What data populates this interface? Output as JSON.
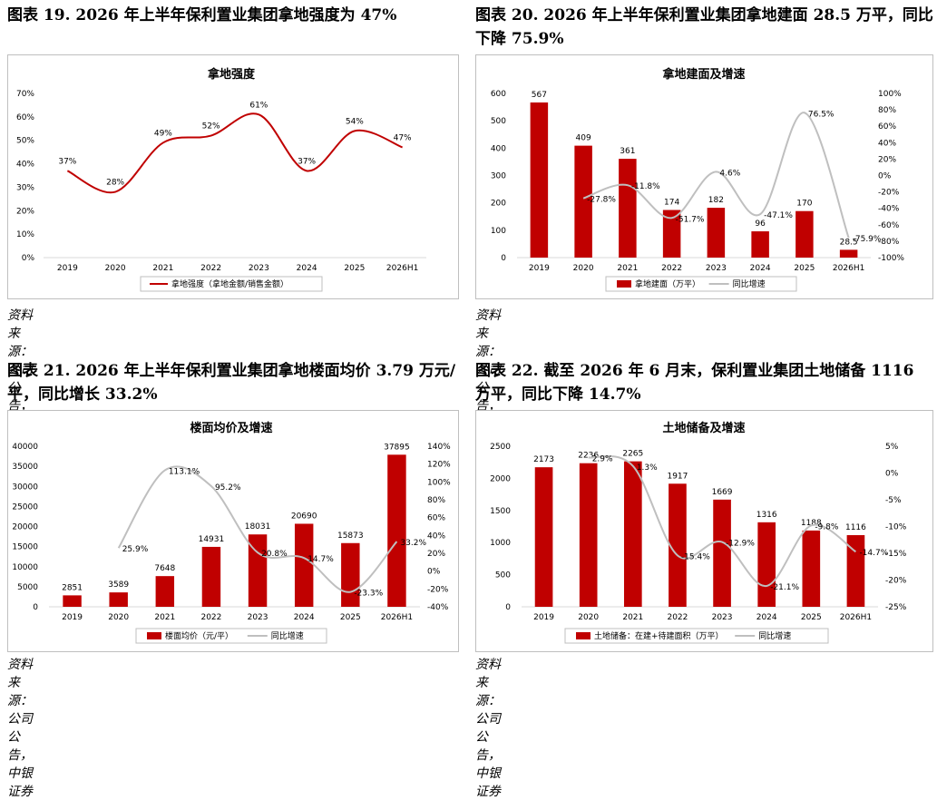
{
  "source_text": "资料来源：公司公告，中银证券",
  "chart_data": [
    {
      "id": "fig19",
      "heading": "图表 19. 2026 年上半年保利置业集团拿地强度为 47%",
      "type": "line",
      "title": "拿地强度",
      "categories": [
        "2019",
        "2020",
        "2021",
        "2022",
        "2023",
        "2024",
        "2025",
        "2026H1"
      ],
      "yticks": [
        "0%",
        "10%",
        "20%",
        "30%",
        "40%",
        "50%",
        "60%",
        "70%"
      ],
      "ylim": [
        0,
        70
      ],
      "series": [
        {
          "name": "拿地强度（拿地金额/销售金额）",
          "values": [
            37,
            28,
            49,
            52,
            61,
            37,
            54,
            47
          ],
          "labels": [
            "37%",
            "28%",
            "49%",
            "52%",
            "61%",
            "37%",
            "54%",
            "47%"
          ],
          "color": "#c00000"
        }
      ],
      "legend": "bottom"
    },
    {
      "id": "fig20",
      "heading": "图表 20. 2026 年上半年保利置业集团拿地建面 28.5 万平，同比下降 75.9%",
      "type": "bar+line",
      "title": "拿地建面及增速",
      "categories": [
        "2019",
        "2020",
        "2021",
        "2022",
        "2023",
        "2024",
        "2025",
        "2026H1"
      ],
      "yticks_left": [
        "0",
        "100",
        "200",
        "300",
        "400",
        "500",
        "600"
      ],
      "ylim_left": [
        0,
        600
      ],
      "yticks_right": [
        "-100%",
        "-80%",
        "-60%",
        "-40%",
        "-20%",
        "0%",
        "20%",
        "40%",
        "60%",
        "80%",
        "100%"
      ],
      "ylim_right": [
        -100,
        100
      ],
      "bars": {
        "name": "拿地建面（万平）",
        "values": [
          567,
          409,
          361,
          174,
          182,
          96,
          170,
          28.5
        ],
        "labels": [
          "567",
          "409",
          "361",
          "174",
          "182",
          "96",
          "170",
          "28.5"
        ],
        "color": "#c00000"
      },
      "line": {
        "name": "同比增速",
        "values": [
          null,
          -27.8,
          -11.8,
          -51.7,
          4.6,
          -47.1,
          76.5,
          -75.9
        ],
        "labels": [
          "",
          "-27.8%",
          "-11.8%",
          "-51.7%",
          "4.6%",
          "-47.1%",
          "76.5%",
          "-75.9%"
        ],
        "color": "#bfbfbf"
      },
      "legend": "bottom"
    },
    {
      "id": "fig21",
      "heading": "图表 21. 2026 年上半年保利置业集团拿地楼面均价 3.79 万元/平，同比增长 33.2%",
      "type": "bar+line",
      "title": "楼面均价及增速",
      "categories": [
        "2019",
        "2020",
        "2021",
        "2022",
        "2023",
        "2024",
        "2025",
        "2026H1"
      ],
      "yticks_left": [
        "0",
        "5000",
        "10000",
        "15000",
        "20000",
        "25000",
        "30000",
        "35000",
        "40000"
      ],
      "ylim_left": [
        0,
        40000
      ],
      "yticks_right": [
        "-40%",
        "-20%",
        "0%",
        "20%",
        "40%",
        "60%",
        "80%",
        "100%",
        "120%",
        "140%"
      ],
      "ylim_right": [
        -40,
        140
      ],
      "bars": {
        "name": "楼面均价（元/平）",
        "values": [
          2851,
          3589,
          7648,
          14931,
          18031,
          20690,
          15873,
          37895
        ],
        "labels": [
          "2851",
          "3589",
          "7648",
          "14931",
          "18031",
          "20690",
          "15873",
          "37895"
        ],
        "color": "#c00000"
      },
      "line": {
        "name": "同比增速",
        "values": [
          null,
          25.9,
          113.1,
          95.2,
          20.8,
          14.7,
          -23.3,
          33.2
        ],
        "labels": [
          "",
          "25.9%",
          "113.1%",
          "95.2%",
          "20.8%",
          "14.7%",
          "-23.3%",
          "33.2%"
        ],
        "color": "#bfbfbf"
      },
      "legend": "bottom"
    },
    {
      "id": "fig22",
      "heading": "图表 22. 截至 2026 年 6 月末，保利置业集团土地储备 1116 万平，同比下降 14.7%",
      "type": "bar+line",
      "title": "土地储备及增速",
      "categories": [
        "2019",
        "2020",
        "2021",
        "2022",
        "2023",
        "2024",
        "2025",
        "2026H1"
      ],
      "yticks_left": [
        "0",
        "500",
        "1000",
        "1500",
        "2000",
        "2500"
      ],
      "ylim_left": [
        0,
        2500
      ],
      "yticks_right": [
        "-25%",
        "-20%",
        "-15%",
        "-10%",
        "-5%",
        "0%",
        "5%"
      ],
      "ylim_right": [
        -25,
        5
      ],
      "bars": {
        "name": "土地储备：在建+待建面积（万平）",
        "values": [
          2173,
          2236,
          2265,
          1917,
          1669,
          1316,
          1188,
          1116
        ],
        "labels": [
          "2173",
          "2236",
          "2265",
          "1917",
          "1669",
          "1316",
          "1188",
          "1116"
        ],
        "color": "#c00000"
      },
      "line": {
        "name": "同比增速",
        "values": [
          null,
          2.9,
          1.3,
          -15.4,
          -12.9,
          -21.1,
          -9.8,
          -14.7
        ],
        "labels": [
          "",
          "2.9%",
          "1.3%",
          "-15.4%",
          "-12.9%",
          "-21.1%",
          "-9.8%",
          "-14.7%"
        ],
        "color": "#bfbfbf"
      },
      "legend": "bottom"
    }
  ]
}
